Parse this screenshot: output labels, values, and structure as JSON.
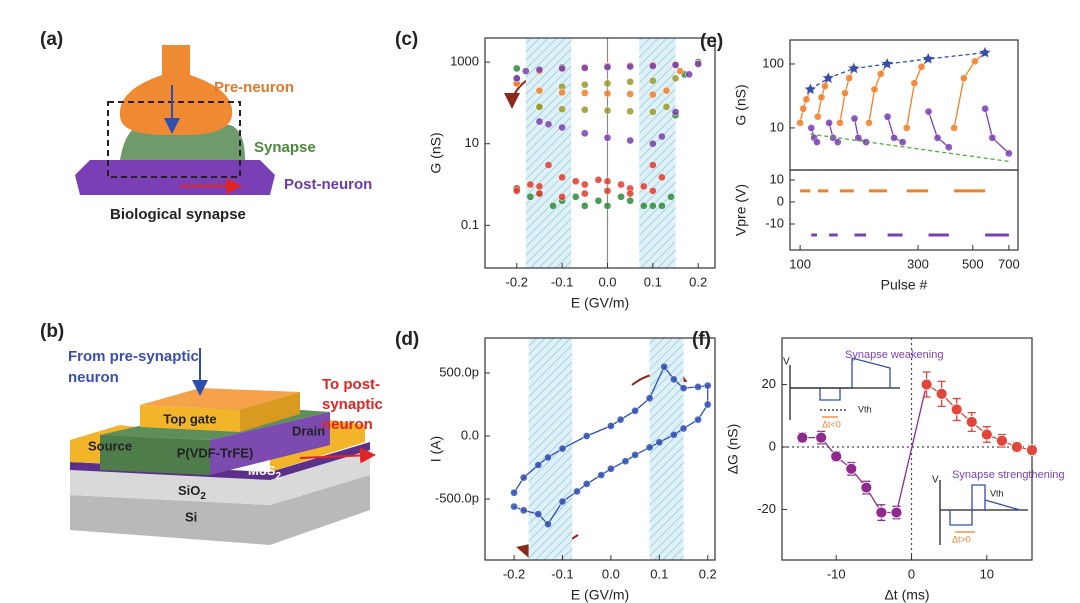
{
  "diagrams": {
    "a": {
      "panel": "(a)",
      "pre": "Pre-neuron",
      "synapse": "Synapse",
      "post": "Post-neuron",
      "caption": "Biological synapse"
    },
    "b": {
      "panel": "(b)",
      "from": [
        "From pre-synaptic",
        "neuron"
      ],
      "to": [
        "To post-",
        "synaptic",
        "neuron"
      ],
      "top_gate": "Top gate",
      "drain": "Drain",
      "source": "Source",
      "ferro": "P(VDF-TrFE)",
      "mos2": "MoS",
      "mos2_sub": "2",
      "sio2": "SiO",
      "sio2_sub": "2",
      "si": "Si"
    }
  },
  "chart_data": [
    {
      "type": "scatter",
      "panel": "(c)",
      "xlabel": "E (GV/m)",
      "ylabel": "G (nS)",
      "xlim": [
        -0.27,
        0.237
      ],
      "xticks": [
        -0.2,
        -0.1,
        {
          "value": 0,
          "label": "0.0"
        },
        0.1,
        0.2
      ],
      "ylim": [
        0.009,
        3900
      ],
      "ylog": true,
      "yticks": [
        0.1,
        10,
        1000
      ],
      "bands": [
        [
          -0.18,
          -0.08
        ],
        [
          0.07,
          0.15
        ]
      ],
      "ref_x": [
        0
      ],
      "series": [
        {
          "color": "#2e8b3a",
          "x": [
            -0.2,
            -0.17,
            -0.15,
            -0.12,
            -0.1,
            -0.07,
            -0.05,
            -0.02,
            0,
            0.03,
            0.05,
            0.08,
            0.1,
            0.12,
            0.14,
            0.15,
            0.17,
            0.2,
            0.15,
            0.1,
            0,
            -0.1,
            -0.2
          ],
          "values": [
            0.8,
            0.5,
            0.6,
            0.3,
            0.4,
            0.5,
            0.3,
            0.4,
            0.3,
            0.5,
            0.4,
            0.3,
            0.3,
            0.3,
            0.5,
            50,
            500,
            1000,
            900,
            850,
            800,
            750,
            700
          ]
        },
        {
          "color": "#e23b2e",
          "x": [
            -0.2,
            -0.17,
            -0.15,
            -0.13,
            -0.1,
            -0.07,
            -0.05,
            -0.02,
            0,
            0.03,
            0.05,
            0.08,
            0.1,
            0.12,
            0.1,
            0.05,
            0,
            -0.05,
            -0.1,
            -0.15,
            -0.2
          ],
          "values": [
            0.8,
            1,
            0.9,
            3,
            1.5,
            1.2,
            1,
            1.3,
            1.2,
            1,
            0.8,
            0.9,
            3,
            1.5,
            0.7,
            0.6,
            0.7,
            0.6,
            0.5,
            0.6,
            0.7
          ]
        },
        {
          "color": "#9a9a2a",
          "x": [
            -0.15,
            -0.1,
            -0.05,
            0,
            0.05,
            0.1,
            0.13,
            0.15,
            0.1,
            0.05,
            0,
            -0.05,
            -0.1,
            -0.15
          ],
          "values": [
            80,
            70,
            68,
            65,
            62,
            60,
            80,
            400,
            350,
            330,
            300,
            280,
            250,
            80
          ]
        },
        {
          "color": "#f07f2a",
          "x": [
            -0.2,
            -0.15,
            -0.1,
            -0.05,
            0,
            0.05,
            0.1,
            0.13,
            0.16,
            0.2,
            0.15,
            0.1,
            0.05,
            0,
            -0.05,
            -0.1,
            -0.15,
            -0.2
          ],
          "values": [
            300,
            200,
            180,
            175,
            170,
            165,
            160,
            200,
            600,
            900,
            870,
            850,
            820,
            800,
            750,
            700,
            600,
            300
          ]
        },
        {
          "color": "#7a3fb0",
          "x": [
            -0.2,
            -0.15,
            -0.13,
            -0.1,
            -0.05,
            0,
            0.05,
            0.1,
            0.12,
            0.15,
            0.18,
            0.2,
            0.15,
            0.1,
            0.05,
            0,
            -0.05,
            -0.1,
            -0.15,
            -0.18,
            -0.2
          ],
          "values": [
            400,
            35,
            30,
            25,
            18,
            14,
            12,
            10,
            15,
            60,
            500,
            900,
            850,
            800,
            780,
            750,
            720,
            700,
            650,
            600,
            400
          ]
        }
      ]
    },
    {
      "type": "scatter",
      "panel": "(d)",
      "xlabel": "E (GV/m)",
      "ylabel": "I (A)",
      "xlim": [
        -0.26,
        0.215
      ],
      "xticks": [
        -0.2,
        -0.1,
        {
          "value": 0,
          "label": "0.0"
        },
        0.1,
        0.2
      ],
      "ylim": [
        -9.84e-10,
        7.78e-10
      ],
      "yticks": [
        {
          "value": -5e-10,
          "label": "-500.0p"
        },
        {
          "value": 0,
          "label": "0.0"
        },
        {
          "value": 5e-10,
          "label": "500.0p"
        }
      ],
      "bands": [
        [
          -0.17,
          -0.08
        ],
        [
          0.08,
          0.15
        ]
      ],
      "series": [
        {
          "color": "#2f4fb0",
          "line": true,
          "x": [
            -0.2,
            -0.18,
            -0.15,
            -0.13,
            -0.1,
            -0.07,
            -0.05,
            -0.02,
            0,
            0.03,
            0.05,
            0.08,
            0.1,
            0.13,
            0.15,
            0.18,
            0.2,
            0.2,
            0.18,
            0.15,
            0.13,
            0.11,
            0.08,
            0.05,
            0.02,
            0,
            -0.05,
            -0.1,
            -0.13,
            -0.15,
            -0.18,
            -0.2
          ],
          "values": [
            -5.6e-10,
            -5.9e-10,
            -6.2e-10,
            -7e-10,
            -5.2e-10,
            -4.4e-10,
            -3.8e-10,
            -3.1e-10,
            -2.6e-10,
            -2e-10,
            -1.5e-10,
            -9e-11,
            -5e-11,
            1e-11,
            6e-11,
            1.3e-10,
            2.5e-10,
            4e-10,
            3.9e-10,
            3.8e-10,
            4.5e-10,
            5.5e-10,
            3e-10,
            2e-10,
            1.3e-10,
            8e-11,
            0,
            -1e-10,
            -1.7e-10,
            -2.3e-10,
            -3.3e-10,
            -4.5e-10
          ]
        }
      ]
    },
    {
      "type": "line",
      "panel": "(e)",
      "ylabel": "G (nS)",
      "xlim": [
        91,
        762
      ],
      "xlog": true,
      "ylim": [
        2.2,
        237
      ],
      "ylog": true,
      "yticks": [
        10,
        100
      ],
      "series": [
        {
          "color": "#f07f2a",
          "line": true,
          "marker": "circle",
          "x": [
            100,
            103,
            106,
            110,
            null,
            118,
            122,
            126,
            130,
            null,
            145,
            152,
            158,
            165,
            null,
            190,
            200,
            212,
            225,
            null,
            270,
            290,
            310,
            330,
            null,
            420,
            460,
            510,
            560
          ],
          "values": [
            12,
            20,
            28,
            40,
            null,
            15,
            30,
            45,
            60,
            null,
            12,
            35,
            60,
            85,
            null,
            12,
            40,
            70,
            100,
            null,
            10,
            50,
            90,
            120,
            null,
            10,
            60,
            110,
            150
          ]
        },
        {
          "color": "#7a3fb0",
          "line": true,
          "marker": "circle",
          "x": [
            111,
            114,
            117,
            null,
            131,
            136,
            142,
            null,
            166,
            172,
            185,
            null,
            226,
            240,
            260,
            null,
            331,
            360,
            400,
            null,
            561,
            600,
            700
          ],
          "values": [
            10,
            7,
            6,
            null,
            12,
            7,
            6,
            null,
            14,
            7,
            6,
            null,
            15,
            7,
            6,
            null,
            18,
            7,
            5,
            null,
            20,
            7,
            4
          ]
        },
        {
          "color": "#2f4fb0",
          "line": true,
          "dashed": true,
          "marker": "star",
          "x": [
            110,
            130,
            165,
            225,
            330,
            560
          ],
          "values": [
            40,
            60,
            85,
            100,
            120,
            150
          ]
        },
        {
          "color": "#4caf3a",
          "line": true,
          "dashed": true,
          "x": [
            110,
            700
          ],
          "values": [
            8,
            3
          ]
        }
      ]
    },
    {
      "type": "line",
      "xlabel": "Pulse #",
      "ylabel": "Vpre (V)",
      "xlim": [
        91,
        762
      ],
      "xlog": true,
      "xticks": [
        100,
        300,
        500,
        700
      ],
      "ylim": [
        -21.8,
        14.5
      ],
      "yticks": [
        -10,
        0,
        10
      ],
      "series": [
        {
          "color": "#f07f2a",
          "line": true,
          "thick": true,
          "x": [
            100,
            110,
            null,
            118,
            130,
            null,
            145,
            165,
            null,
            190,
            225,
            null,
            270,
            330,
            null,
            420,
            560
          ],
          "values": [
            5,
            5,
            null,
            5,
            5,
            null,
            5,
            5,
            null,
            5,
            5,
            null,
            5,
            5,
            null,
            5,
            5
          ]
        },
        {
          "color": "#7a3fb0",
          "line": true,
          "thick": true,
          "x": [
            111,
            117,
            null,
            131,
            142,
            null,
            166,
            185,
            null,
            226,
            260,
            null,
            331,
            400,
            null,
            561,
            700
          ],
          "values": [
            -15,
            -15,
            null,
            -15,
            -15,
            null,
            -15,
            -15,
            null,
            -15,
            -15,
            null,
            -15,
            -15,
            null,
            -15,
            -15
          ]
        }
      ]
    },
    {
      "type": "scatter",
      "panel": "(f)",
      "xlabel": "Δt (ms)",
      "ylabel": "ΔG (nS)",
      "xlim": [
        -17.2,
        16
      ],
      "xticks": [
        -10,
        0,
        10
      ],
      "ylim": [
        -36.2,
        34.9
      ],
      "yticks": [
        -20,
        0,
        20
      ],
      "ref_x": [
        0
      ],
      "ref_y": [
        0
      ],
      "inset_texts": [
        "Synapse weakening",
        "Synapse strengthening",
        "V",
        "Vth",
        "Δt<0",
        "V",
        "Vth",
        "Δt>0"
      ],
      "series": [
        {
          "color": "#8e2a8e",
          "line": true,
          "marker": "ball",
          "x": [
            -14.5,
            -12,
            -10,
            -8,
            -6,
            -4,
            -2,
            2
          ],
          "values": [
            3,
            3,
            -3,
            -7,
            -13,
            -21,
            -21,
            20
          ],
          "errors": [
            1.5,
            2,
            1.5,
            2,
            2,
            2.5,
            2,
            null
          ]
        },
        {
          "color": "#e0463a",
          "line": true,
          "marker": "ball",
          "x": [
            2,
            4,
            6,
            8,
            10,
            12,
            14,
            16
          ],
          "values": [
            20,
            17,
            12,
            8,
            4,
            2,
            0,
            -1
          ],
          "errors": [
            4,
            4,
            3.5,
            3,
            2.5,
            2,
            1.5,
            1.5
          ]
        }
      ]
    }
  ]
}
